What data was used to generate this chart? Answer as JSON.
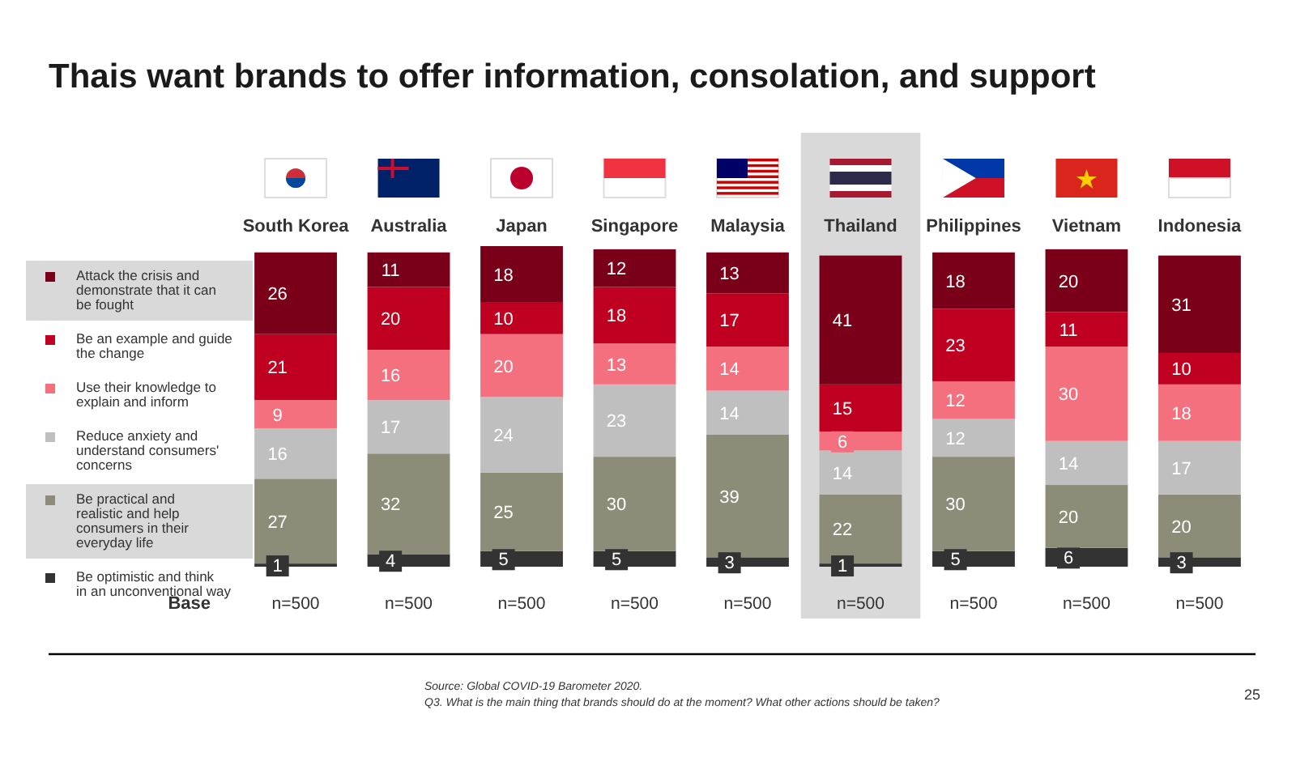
{
  "chart_data": {
    "type": "bar",
    "stacked": true,
    "title": "Thais want brands to offer information, consolation, and support",
    "categories": [
      "South Korea",
      "Australia",
      "Japan",
      "Singapore",
      "Malaysia",
      "Thailand",
      "Philippines",
      "Vietnam",
      "Indonesia"
    ],
    "series": [
      {
        "name": "Be optimistic and think in an unconventional way",
        "color": "#333333",
        "values": [
          1,
          4,
          5,
          5,
          3,
          1,
          5,
          6,
          3
        ]
      },
      {
        "name": "Be practical and realistic and help consumers in their everyday life",
        "color": "#8c8c78",
        "values": [
          27,
          32,
          25,
          30,
          39,
          22,
          30,
          20,
          20
        ]
      },
      {
        "name": "Reduce anxiety and understand consumers' concerns",
        "color": "#bfbfbf",
        "values": [
          16,
          17,
          24,
          23,
          14,
          14,
          12,
          14,
          17
        ]
      },
      {
        "name": "Use their knowledge to explain and inform",
        "color": "#f4707f",
        "values": [
          9,
          16,
          20,
          13,
          14,
          6,
          12,
          30,
          18
        ]
      },
      {
        "name": "Be an example and guide the change",
        "color": "#c00020",
        "values": [
          21,
          20,
          10,
          18,
          17,
          15,
          23,
          11,
          10
        ]
      },
      {
        "name": "Attack the crisis and demonstrate that it can be fought",
        "color": "#7a0019",
        "values": [
          26,
          11,
          18,
          12,
          13,
          41,
          18,
          20,
          31
        ]
      }
    ],
    "ylim": [
      0,
      102
    ],
    "tick_labels": "x",
    "data_labels": true,
    "legend": "left",
    "bands": [
      {
        "axis": "x",
        "from": "Thailand",
        "to": "Thailand",
        "color": "#d9d9d9"
      }
    ],
    "annotations": [
      "Base",
      "n=500",
      "n=500",
      "n=500",
      "n=500",
      "n=500",
      "n=500",
      "n=500",
      "n=500",
      "n=500",
      "Source: Global COVID-19 Barometer 2020.",
      "Q3. What is the main thing that brands should do at the moment? What other actions should be taken?",
      "25"
    ]
  }
}
